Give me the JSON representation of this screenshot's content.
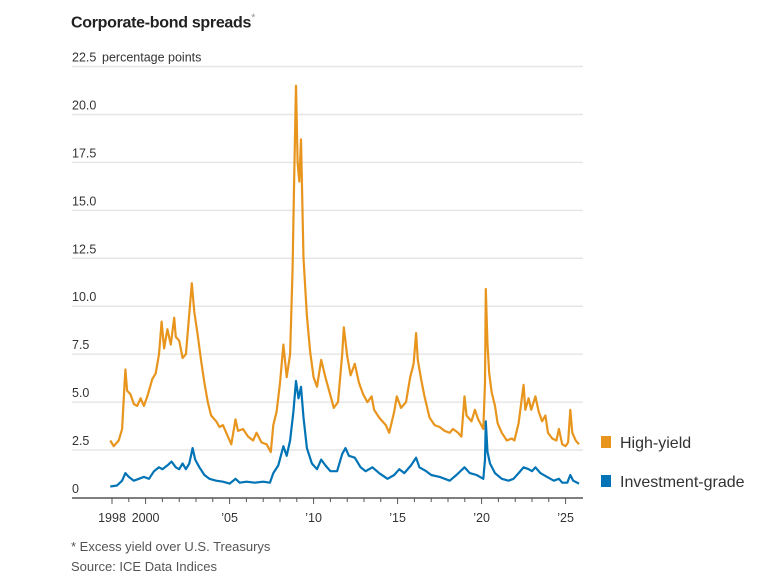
{
  "chart_data": {
    "type": "line",
    "title": "Corporate-bond spreads",
    "title_marker": "*",
    "ylabel_unit": "percentage points",
    "ylim": [
      0,
      22.5
    ],
    "yticks": [
      "0",
      "2.5",
      "5.0",
      "7.5",
      "10.0",
      "12.5",
      "15.0",
      "17.5",
      "20.0",
      "22.5"
    ],
    "xlim": [
      1997.5,
      2026
    ],
    "xticks": [
      {
        "year": 1998,
        "label": "1998"
      },
      {
        "year": 2000,
        "label": "2000"
      },
      {
        "year": 2005,
        "label": "’05"
      },
      {
        "year": 2010,
        "label": "’10"
      },
      {
        "year": 2015,
        "label": "’15"
      },
      {
        "year": 2020,
        "label": "’20"
      },
      {
        "year": 2025,
        "label": "’25"
      }
    ],
    "grid": true,
    "legend_position": "right",
    "series": [
      {
        "name": "High-yield",
        "color": "#e8951e",
        "points": [
          [
            1997.9,
            3.0
          ],
          [
            1998.1,
            2.7
          ],
          [
            1998.4,
            3.0
          ],
          [
            1998.6,
            3.6
          ],
          [
            1998.75,
            6.0
          ],
          [
            1998.8,
            6.7
          ],
          [
            1998.9,
            5.6
          ],
          [
            1999.1,
            5.4
          ],
          [
            1999.3,
            4.9
          ],
          [
            1999.5,
            4.8
          ],
          [
            1999.7,
            5.2
          ],
          [
            1999.9,
            4.8
          ],
          [
            2000.1,
            5.3
          ],
          [
            2000.4,
            6.2
          ],
          [
            2000.6,
            6.5
          ],
          [
            2000.8,
            7.5
          ],
          [
            2000.95,
            9.2
          ],
          [
            2001.1,
            7.8
          ],
          [
            2001.3,
            8.8
          ],
          [
            2001.5,
            8.0
          ],
          [
            2001.7,
            9.4
          ],
          [
            2001.8,
            8.4
          ],
          [
            2002.0,
            8.2
          ],
          [
            2002.2,
            7.3
          ],
          [
            2002.4,
            7.5
          ],
          [
            2002.6,
            9.6
          ],
          [
            2002.75,
            11.2
          ],
          [
            2002.9,
            9.7
          ],
          [
            2003.1,
            8.5
          ],
          [
            2003.3,
            7.2
          ],
          [
            2003.5,
            6.0
          ],
          [
            2003.7,
            5.0
          ],
          [
            2003.9,
            4.3
          ],
          [
            2004.2,
            4.0
          ],
          [
            2004.4,
            3.7
          ],
          [
            2004.6,
            3.8
          ],
          [
            2004.9,
            3.2
          ],
          [
            2005.1,
            2.8
          ],
          [
            2005.35,
            4.1
          ],
          [
            2005.5,
            3.5
          ],
          [
            2005.8,
            3.6
          ],
          [
            2006.1,
            3.2
          ],
          [
            2006.4,
            3.0
          ],
          [
            2006.6,
            3.4
          ],
          [
            2006.9,
            2.9
          ],
          [
            2007.2,
            2.8
          ],
          [
            2007.45,
            2.4
          ],
          [
            2007.6,
            3.8
          ],
          [
            2007.8,
            4.5
          ],
          [
            2008.0,
            6.0
          ],
          [
            2008.2,
            8.0
          ],
          [
            2008.4,
            6.3
          ],
          [
            2008.6,
            7.5
          ],
          [
            2008.75,
            12.0
          ],
          [
            2008.85,
            17.0
          ],
          [
            2008.95,
            21.5
          ],
          [
            2009.05,
            17.5
          ],
          [
            2009.15,
            16.5
          ],
          [
            2009.25,
            18.7
          ],
          [
            2009.4,
            12.5
          ],
          [
            2009.6,
            9.5
          ],
          [
            2009.8,
            7.6
          ],
          [
            2010.0,
            6.3
          ],
          [
            2010.2,
            5.8
          ],
          [
            2010.45,
            7.2
          ],
          [
            2010.7,
            6.3
          ],
          [
            2010.95,
            5.5
          ],
          [
            2011.2,
            4.7
          ],
          [
            2011.45,
            5.0
          ],
          [
            2011.7,
            7.5
          ],
          [
            2011.8,
            8.9
          ],
          [
            2012.0,
            7.4
          ],
          [
            2012.2,
            6.4
          ],
          [
            2012.45,
            7.0
          ],
          [
            2012.7,
            6.0
          ],
          [
            2012.95,
            5.4
          ],
          [
            2013.2,
            5.0
          ],
          [
            2013.45,
            5.3
          ],
          [
            2013.6,
            4.6
          ],
          [
            2013.9,
            4.2
          ],
          [
            2014.3,
            3.8
          ],
          [
            2014.5,
            3.4
          ],
          [
            2014.8,
            4.5
          ],
          [
            2014.95,
            5.3
          ],
          [
            2015.2,
            4.7
          ],
          [
            2015.5,
            5.0
          ],
          [
            2015.75,
            6.3
          ],
          [
            2015.95,
            7.0
          ],
          [
            2016.1,
            8.6
          ],
          [
            2016.2,
            7.2
          ],
          [
            2016.4,
            6.2
          ],
          [
            2016.6,
            5.3
          ],
          [
            2016.9,
            4.2
          ],
          [
            2017.2,
            3.8
          ],
          [
            2017.5,
            3.7
          ],
          [
            2017.8,
            3.5
          ],
          [
            2018.1,
            3.4
          ],
          [
            2018.3,
            3.6
          ],
          [
            2018.6,
            3.4
          ],
          [
            2018.8,
            3.2
          ],
          [
            2018.98,
            5.3
          ],
          [
            2019.1,
            4.3
          ],
          [
            2019.4,
            4.0
          ],
          [
            2019.6,
            4.6
          ],
          [
            2019.8,
            4.1
          ],
          [
            2020.1,
            3.6
          ],
          [
            2020.2,
            6.0
          ],
          [
            2020.25,
            10.9
          ],
          [
            2020.35,
            8.0
          ],
          [
            2020.45,
            6.5
          ],
          [
            2020.6,
            5.5
          ],
          [
            2020.8,
            4.8
          ],
          [
            2020.95,
            3.9
          ],
          [
            2021.2,
            3.4
          ],
          [
            2021.5,
            3.0
          ],
          [
            2021.8,
            3.1
          ],
          [
            2021.95,
            3.0
          ],
          [
            2022.2,
            3.9
          ],
          [
            2022.45,
            5.6
          ],
          [
            2022.5,
            5.9
          ],
          [
            2022.6,
            4.6
          ],
          [
            2022.8,
            5.2
          ],
          [
            2022.95,
            4.6
          ],
          [
            2023.2,
            5.3
          ],
          [
            2023.4,
            4.5
          ],
          [
            2023.6,
            4.0
          ],
          [
            2023.8,
            4.3
          ],
          [
            2023.95,
            3.4
          ],
          [
            2024.2,
            3.1
          ],
          [
            2024.45,
            3.0
          ],
          [
            2024.6,
            3.6
          ],
          [
            2024.8,
            2.8
          ],
          [
            2025.0,
            2.7
          ],
          [
            2025.15,
            2.9
          ],
          [
            2025.28,
            4.6
          ],
          [
            2025.4,
            3.4
          ],
          [
            2025.6,
            3.0
          ],
          [
            2025.8,
            2.8
          ]
        ]
      },
      {
        "name": "Investment-grade",
        "color": "#0274b6",
        "points": [
          [
            1997.9,
            0.6
          ],
          [
            1998.3,
            0.65
          ],
          [
            1998.6,
            0.9
          ],
          [
            1998.8,
            1.3
          ],
          [
            1999.0,
            1.1
          ],
          [
            1999.3,
            0.9
          ],
          [
            1999.6,
            1.0
          ],
          [
            1999.9,
            1.1
          ],
          [
            2000.2,
            1.0
          ],
          [
            2000.5,
            1.4
          ],
          [
            2000.8,
            1.6
          ],
          [
            2001.0,
            1.5
          ],
          [
            2001.3,
            1.7
          ],
          [
            2001.55,
            1.9
          ],
          [
            2001.8,
            1.6
          ],
          [
            2002.0,
            1.5
          ],
          [
            2002.2,
            1.8
          ],
          [
            2002.4,
            1.5
          ],
          [
            2002.6,
            1.8
          ],
          [
            2002.8,
            2.6
          ],
          [
            2002.95,
            2.0
          ],
          [
            2003.2,
            1.6
          ],
          [
            2003.5,
            1.2
          ],
          [
            2003.8,
            1.0
          ],
          [
            2004.2,
            0.9
          ],
          [
            2004.6,
            0.85
          ],
          [
            2005.0,
            0.75
          ],
          [
            2005.35,
            1.0
          ],
          [
            2005.6,
            0.8
          ],
          [
            2006.0,
            0.85
          ],
          [
            2006.5,
            0.8
          ],
          [
            2007.0,
            0.85
          ],
          [
            2007.4,
            0.8
          ],
          [
            2007.6,
            1.3
          ],
          [
            2007.9,
            1.7
          ],
          [
            2008.2,
            2.7
          ],
          [
            2008.4,
            2.2
          ],
          [
            2008.6,
            3.0
          ],
          [
            2008.8,
            4.5
          ],
          [
            2008.95,
            6.1
          ],
          [
            2009.1,
            5.2
          ],
          [
            2009.25,
            5.8
          ],
          [
            2009.4,
            4.2
          ],
          [
            2009.6,
            2.6
          ],
          [
            2009.9,
            1.8
          ],
          [
            2010.2,
            1.5
          ],
          [
            2010.45,
            2.0
          ],
          [
            2010.7,
            1.7
          ],
          [
            2011.0,
            1.4
          ],
          [
            2011.4,
            1.4
          ],
          [
            2011.7,
            2.3
          ],
          [
            2011.9,
            2.6
          ],
          [
            2012.1,
            2.2
          ],
          [
            2012.45,
            2.1
          ],
          [
            2012.8,
            1.6
          ],
          [
            2013.1,
            1.4
          ],
          [
            2013.5,
            1.6
          ],
          [
            2013.9,
            1.3
          ],
          [
            2014.4,
            1.0
          ],
          [
            2014.8,
            1.2
          ],
          [
            2015.1,
            1.5
          ],
          [
            2015.4,
            1.3
          ],
          [
            2015.8,
            1.7
          ],
          [
            2016.1,
            2.1
          ],
          [
            2016.3,
            1.6
          ],
          [
            2016.7,
            1.4
          ],
          [
            2017.0,
            1.2
          ],
          [
            2017.5,
            1.1
          ],
          [
            2018.1,
            0.9
          ],
          [
            2018.5,
            1.2
          ],
          [
            2018.98,
            1.6
          ],
          [
            2019.3,
            1.3
          ],
          [
            2019.7,
            1.2
          ],
          [
            2020.1,
            1.0
          ],
          [
            2020.2,
            2.0
          ],
          [
            2020.25,
            4.0
          ],
          [
            2020.35,
            2.4
          ],
          [
            2020.5,
            1.8
          ],
          [
            2020.8,
            1.3
          ],
          [
            2021.2,
            1.0
          ],
          [
            2021.6,
            0.9
          ],
          [
            2021.9,
            1.0
          ],
          [
            2022.2,
            1.3
          ],
          [
            2022.5,
            1.6
          ],
          [
            2022.8,
            1.5
          ],
          [
            2023.0,
            1.4
          ],
          [
            2023.2,
            1.6
          ],
          [
            2023.5,
            1.3
          ],
          [
            2023.9,
            1.1
          ],
          [
            2024.3,
            0.9
          ],
          [
            2024.6,
            1.0
          ],
          [
            2024.8,
            0.8
          ],
          [
            2025.1,
            0.8
          ],
          [
            2025.28,
            1.2
          ],
          [
            2025.45,
            0.9
          ],
          [
            2025.8,
            0.75
          ]
        ]
      }
    ],
    "footnote": "* Excess yield over U.S. Treasurys",
    "source": "Source: ICE Data Indices"
  }
}
